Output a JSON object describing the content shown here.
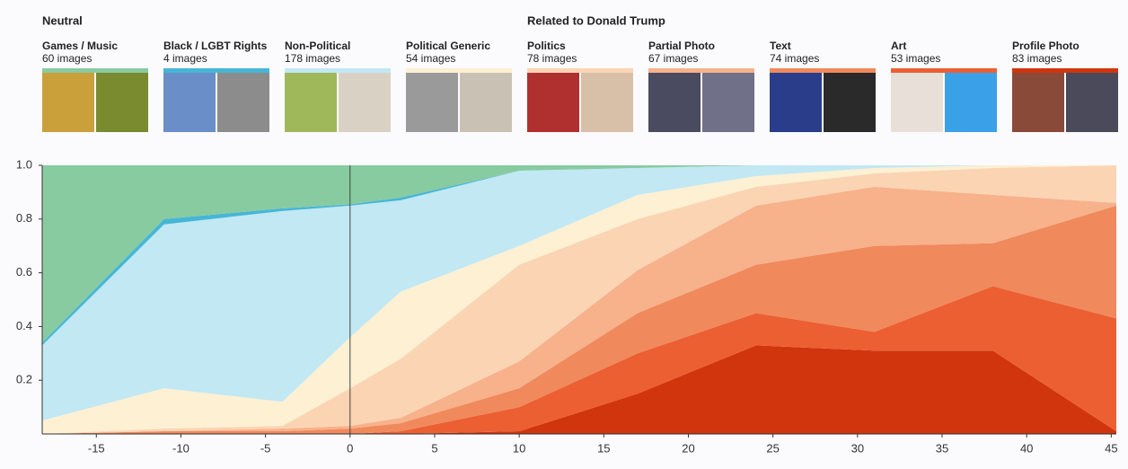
{
  "chart_data": {
    "type": "stacked-area",
    "groups": [
      {
        "title": "Neutral",
        "first": 0
      },
      {
        "title": "Related to Donald Trump",
        "first": 4
      }
    ],
    "x": [
      -18.2,
      -11,
      -4,
      0,
      3,
      10,
      17,
      24,
      31,
      38,
      45.3
    ],
    "xlim": [
      -18.2,
      45.3
    ],
    "xticks": [
      -15,
      -10,
      -5,
      0,
      5,
      10,
      15,
      20,
      25,
      30,
      35,
      40,
      45
    ],
    "ylim": [
      0,
      1
    ],
    "yticks": [
      0.2,
      0.4,
      0.6,
      0.8,
      {
        "value": 1,
        "label": "1.0"
      }
    ],
    "reference_line_x": 0,
    "series": [
      {
        "name": "Games / Music",
        "count": "60 images",
        "color": "#88cba1",
        "values": [
          0.66,
          0.2,
          0.16,
          0.145,
          0.12,
          0.02,
          0.01,
          0,
          0,
          0,
          0
        ]
      },
      {
        "name": "Black / LGBT Rights",
        "count": "4 images",
        "color": "#47b6d6",
        "values": [
          0.01,
          0.02,
          0.01,
          0.005,
          0.01,
          0,
          0,
          0,
          0,
          0,
          0
        ]
      },
      {
        "name": "Non-Political",
        "count": "178 images",
        "color": "#c1e8f3",
        "values": [
          0.28,
          0.61,
          0.71,
          0.49,
          0.34,
          0.28,
          0.1,
          0.04,
          0.01,
          0,
          0
        ]
      },
      {
        "name": "Political Generic",
        "count": "54 images",
        "color": "#fdf0d3",
        "values": [
          0.05,
          0.15,
          0.09,
          0.19,
          0.25,
          0.07,
          0.09,
          0.04,
          0.02,
          0.01,
          0
        ]
      },
      {
        "name": "Politics",
        "count": "78 images",
        "color": "#fbd4b4",
        "values": [
          0,
          0.01,
          0.01,
          0.14,
          0.22,
          0.36,
          0.19,
          0.07,
          0.05,
          0.1,
          0.14
        ]
      },
      {
        "name": "Partial Photo",
        "count": "67 images",
        "color": "#f7b18b",
        "values": [
          0,
          0,
          0.01,
          0.01,
          0.02,
          0.1,
          0.16,
          0.22,
          0.22,
          0.18,
          0.01
        ]
      },
      {
        "name": "Text",
        "count": "74 images",
        "color": "#f0895c",
        "values": [
          0,
          0.01,
          0.01,
          0.02,
          0.03,
          0.07,
          0.15,
          0.18,
          0.32,
          0.16,
          0.42
        ]
      },
      {
        "name": "Art",
        "count": "53 images",
        "color": "#ec5f33",
        "values": [
          0,
          0,
          0,
          0,
          0.01,
          0.09,
          0.15,
          0.12,
          0.07,
          0.24,
          0.42
        ]
      },
      {
        "name": "Profile Photo",
        "count": "83 images",
        "color": "#d1350e",
        "values": [
          0,
          0,
          0,
          0,
          0,
          0.01,
          0.15,
          0.33,
          0.31,
          0.31,
          0.01
        ]
      }
    ]
  }
}
